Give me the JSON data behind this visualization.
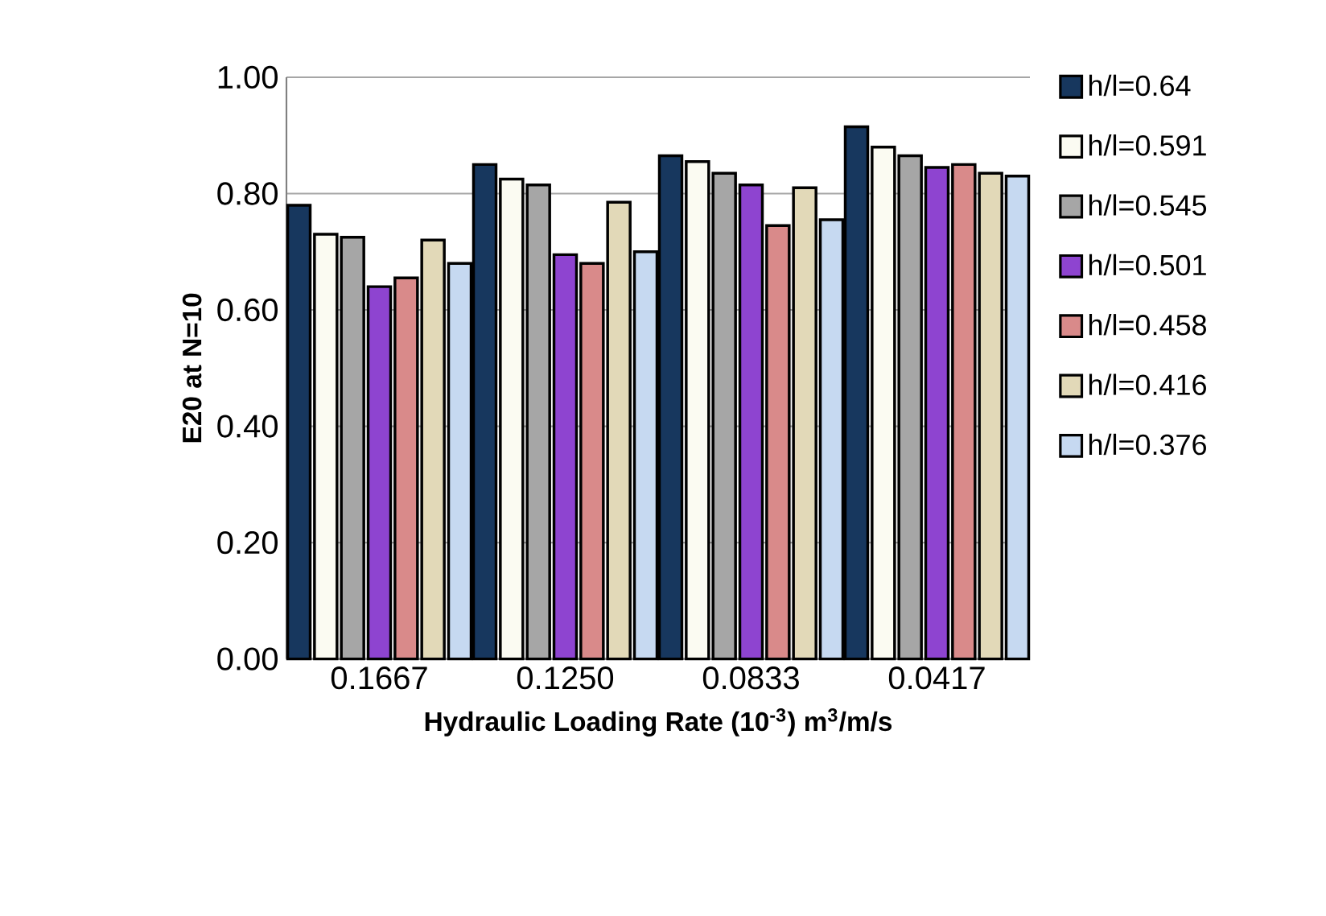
{
  "chart_data": {
    "type": "bar",
    "xlabel": "Hydraulic Loading Rate (10$^{-3}$) m$^{3}$/m/s",
    "ylabel": "E20 at N=10",
    "categories": [
      "0.1667",
      "0.1250",
      "0.0833",
      "0.0417"
    ],
    "series": [
      {
        "name": "h/l=0.64",
        "color": "#17375e",
        "values": [
          0.78,
          0.85,
          0.865,
          0.915
        ]
      },
      {
        "name": "h/l=0.591",
        "color": "#fbfbf2",
        "values": [
          0.73,
          0.825,
          0.855,
          0.88
        ]
      },
      {
        "name": "h/l=0.545",
        "color": "#a6a6a6",
        "values": [
          0.725,
          0.815,
          0.835,
          0.865
        ]
      },
      {
        "name": "h/l=0.501",
        "color": "#8e44d0",
        "values": [
          0.64,
          0.695,
          0.815,
          0.845
        ]
      },
      {
        "name": "h/l=0.458",
        "color": "#d98a8a",
        "values": [
          0.655,
          0.68,
          0.745,
          0.85
        ]
      },
      {
        "name": "h/l=0.416",
        "color": "#e2d9b8",
        "values": [
          0.72,
          0.785,
          0.81,
          0.835
        ]
      },
      {
        "name": "h/l=0.376",
        "color": "#c6d9f1",
        "values": [
          0.68,
          0.7,
          0.755,
          0.83
        ]
      }
    ],
    "ylim": [
      0,
      1
    ],
    "yticks": [
      {
        "value": 0,
        "label": "0.00"
      },
      {
        "value": 0.2,
        "label": "0.20"
      },
      {
        "value": 0.4,
        "label": "0.40"
      },
      {
        "value": 0.6,
        "label": "0.60"
      },
      {
        "value": 0.8,
        "label": "0.80"
      },
      {
        "value": 1,
        "label": "1.00"
      }
    ],
    "grid": "y",
    "legend": "right"
  }
}
